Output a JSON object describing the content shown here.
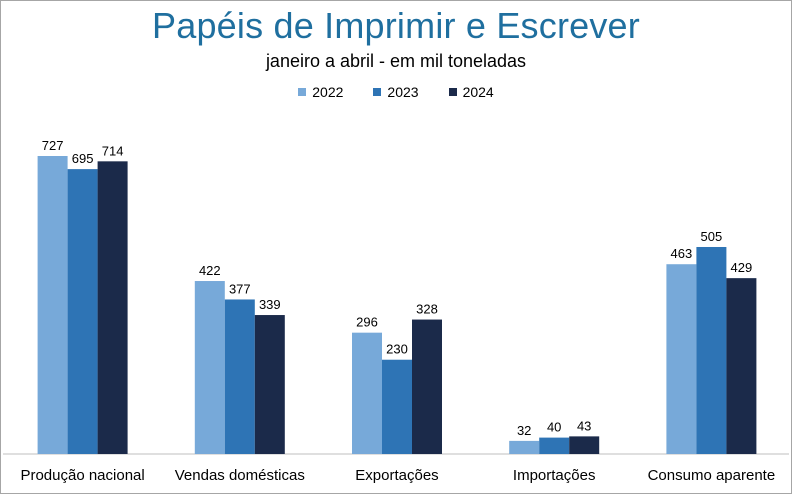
{
  "chart_data": {
    "type": "bar",
    "title": "Papéis de Imprimir e Escrever",
    "subtitle": "janeiro a abril  -  em mil toneladas",
    "xlabel": "",
    "ylabel": "",
    "ylim": [
      0,
      800
    ],
    "grid": false,
    "legend_position": "top-center",
    "categories": [
      "Produção nacional",
      "Vendas domésticas",
      "Exportações",
      "Importações",
      "Consumo aparente"
    ],
    "series": [
      {
        "name": "2022",
        "color": "#77a9d9",
        "values": [
          727,
          422,
          296,
          32,
          463
        ]
      },
      {
        "name": "2023",
        "color": "#2e74b5",
        "values": [
          695,
          377,
          230,
          40,
          505
        ]
      },
      {
        "name": "2024",
        "color": "#1b2a4a",
        "values": [
          714,
          339,
          328,
          43,
          429
        ]
      }
    ]
  }
}
